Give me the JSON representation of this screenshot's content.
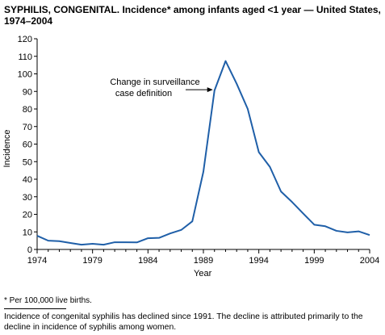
{
  "title": {
    "lead": "SYPHILIS, CONGENITAL.",
    "rest": "Incidence* among infants aged <1 year — United States, 1974–2004"
  },
  "footnote": "* Per 100,000 live births.",
  "summary": "Incidence of congenital syphilis has declined since 1991. The decline is attributed primarily to the decline in incidence of syphilis among women.",
  "chart_data": {
    "type": "line",
    "xlabel": "Year",
    "ylabel": "Incidence",
    "xlim": [
      1974,
      2004
    ],
    "ylim": [
      0,
      120
    ],
    "x_ticks": [
      1974,
      1979,
      1984,
      1989,
      1994,
      1999,
      2004
    ],
    "y_ticks": [
      0,
      10,
      20,
      30,
      40,
      50,
      60,
      70,
      80,
      90,
      100,
      110,
      120
    ],
    "grid": false,
    "line_color": "#1f5fa8",
    "series": [
      {
        "x": [
          1974,
          1975,
          1976,
          1977,
          1978,
          1979,
          1980,
          1981,
          1982,
          1983,
          1984,
          1985,
          1986,
          1987,
          1988,
          1989,
          1990,
          1991,
          1992,
          1993,
          1994,
          1995,
          1996,
          1997,
          1998,
          1999,
          2000,
          2001,
          2002,
          2003,
          2004
        ],
        "values": [
          7.8,
          5.0,
          4.7,
          3.7,
          2.7,
          3.2,
          2.7,
          4.1,
          4.1,
          4.0,
          6.4,
          6.6,
          9.1,
          11.1,
          16.0,
          44.3,
          90.5,
          107.3,
          94.4,
          80.0,
          55.4,
          47.0,
          33.0,
          27.0,
          20.5,
          14.1,
          13.2,
          10.6,
          9.7,
          10.3,
          8.2
        ]
      }
    ],
    "annotation": {
      "text_line1": "Change in surveillance",
      "text_line2": "case definition",
      "x": 1990,
      "y": 91
    }
  }
}
